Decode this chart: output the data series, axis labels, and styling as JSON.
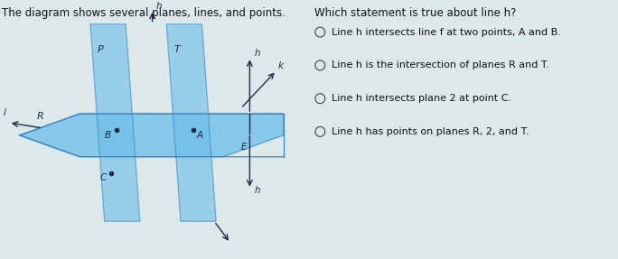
{
  "bg_color": "#dde8e8",
  "title_text": "The diagram shows several planes, lines, and points.",
  "question_text": "Which statement is true about line h?",
  "choices": [
    "Line h intersects line f at two points, A and B.",
    "Line h is the intersection of planes R and T.",
    "Line h intersects plane 2 at point C.",
    "Line h has points on planes R, 2, and T."
  ],
  "plane_color": "#6bbde8",
  "plane_alpha": 0.6,
  "plane_edge_color": "#3388cc",
  "dot_color": "#1a2a4a",
  "line_color": "#1a2a4a",
  "label_color": "#1a2a4a",
  "fs_title": 8.5,
  "fs_question": 8.5,
  "fs_choices": 8.0,
  "fs_label": 7.5,
  "fs_plane_label": 8.0
}
